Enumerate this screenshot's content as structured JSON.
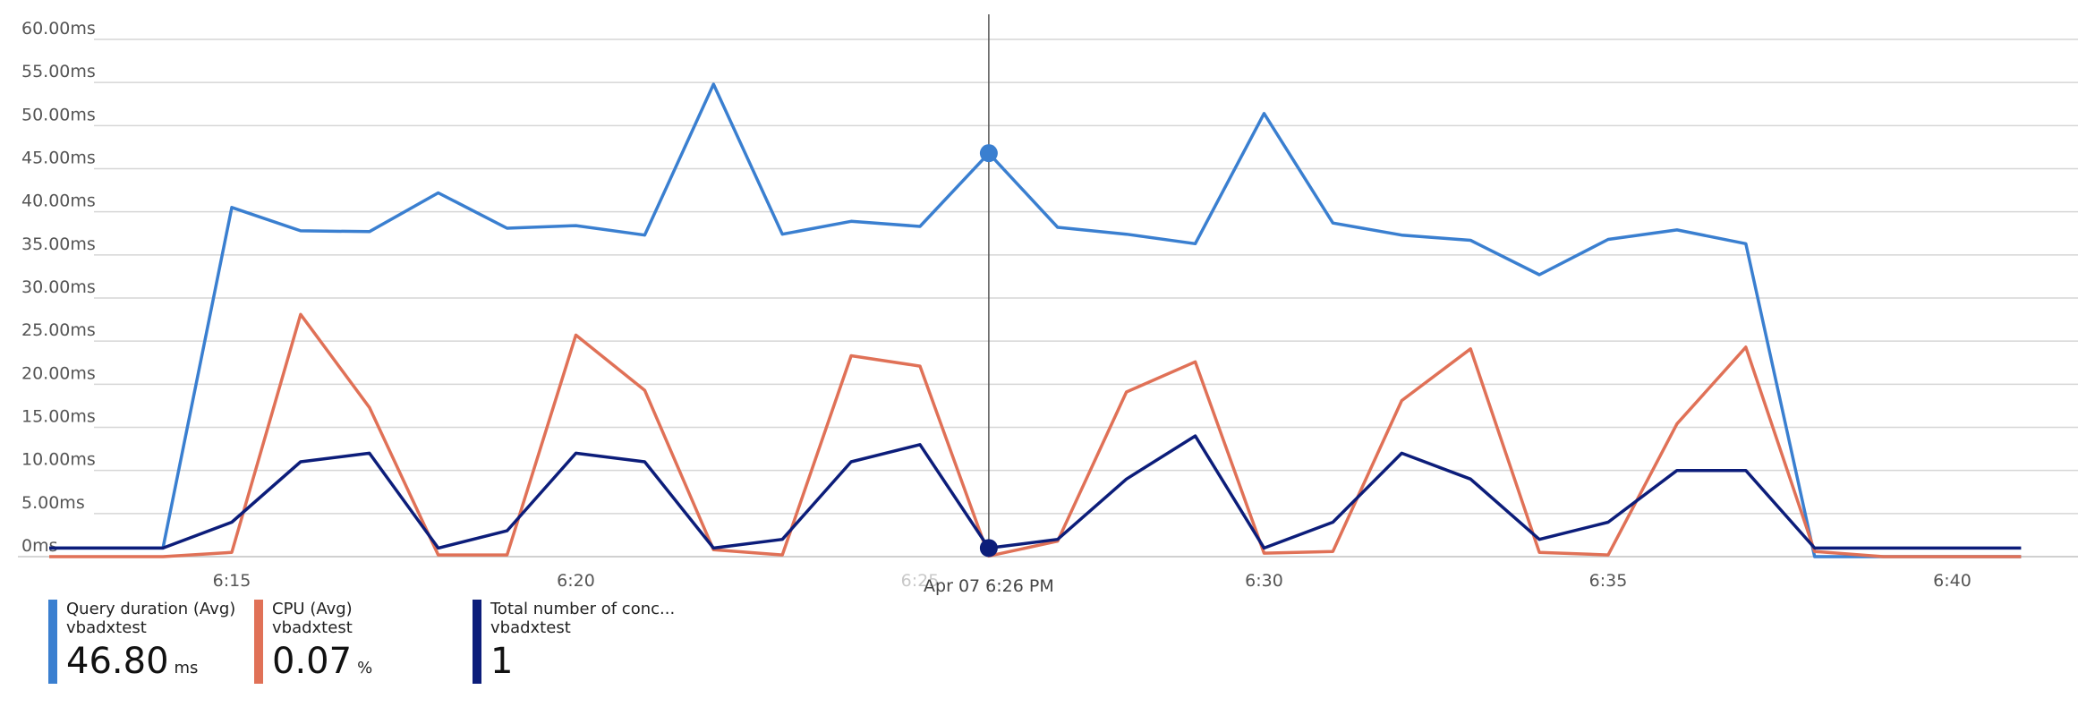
{
  "chart_data": {
    "type": "line",
    "x_tick_labels": [
      "6:15",
      "6:20",
      "6:25",
      "6:30",
      "6:35",
      "6:40"
    ],
    "y_tick_labels": [
      "0ms",
      "5.00ms",
      "10.00ms",
      "15.00ms",
      "20.00ms",
      "25.00ms",
      "30.00ms",
      "35.00ms",
      "40.00ms",
      "45.00ms",
      "50.00ms",
      "55.00ms",
      "60.00ms"
    ],
    "ylim": [
      0,
      60
    ],
    "x_minutes": [
      13.0,
      14.0,
      15.0,
      16.0,
      17.0,
      18.0,
      19.0,
      20.0,
      21.0,
      22.0,
      23.0,
      24.0,
      25.0,
      26.0,
      27.0,
      28.0,
      29.0,
      30.0,
      31.0,
      32.0,
      33.0,
      34.0,
      35.0,
      36.0,
      37.0,
      38.0,
      39.0,
      40.0,
      41.0
    ],
    "series": [
      {
        "name": "Query duration (Avg)",
        "color": "#3a7fd0",
        "values": [
          1.0,
          1.0,
          40.5,
          37.8,
          37.7,
          42.2,
          38.1,
          38.4,
          37.3,
          54.8,
          37.4,
          38.9,
          38.3,
          46.8,
          38.2,
          37.4,
          36.3,
          51.4,
          38.7,
          37.3,
          36.7,
          32.7,
          36.8,
          37.9,
          36.3,
          0.0,
          0.0,
          0.0,
          0.0
        ]
      },
      {
        "name": "CPU (Avg)",
        "color": "#e07157",
        "values": [
          0.0,
          0.0,
          0.5,
          28.1,
          17.3,
          0.2,
          0.2,
          25.7,
          19.3,
          0.8,
          0.2,
          23.3,
          22.1,
          0.07,
          1.8,
          19.1,
          22.6,
          0.4,
          0.6,
          18.1,
          24.1,
          0.5,
          0.2,
          15.4,
          24.3,
          0.6,
          0.0,
          0.0,
          0.0
        ]
      },
      {
        "name": "Total number of conc...",
        "color": "#0c1d7a",
        "values": [
          1.0,
          1.0,
          4.0,
          11.0,
          12.0,
          1.0,
          3.0,
          12.0,
          11.0,
          1.0,
          2.0,
          11.0,
          13.0,
          1.0,
          2.0,
          9.0,
          14.0,
          1.0,
          4.0,
          12.0,
          9.0,
          2.0,
          4.0,
          10.0,
          10.0,
          1.0,
          1.0,
          1.0,
          1.0
        ]
      }
    ],
    "cursor": {
      "label": "Apr 07 6:26 PM",
      "x_minute": 26.0
    },
    "grid": true
  },
  "legend": [
    {
      "name": "Query duration (Avg)",
      "source": "vbadxtest",
      "value": "46.80",
      "unit": "ms",
      "color": "#3a7fd0"
    },
    {
      "name": "CPU (Avg)",
      "source": "vbadxtest",
      "value": "0.07",
      "unit": "%",
      "color": "#e07157"
    },
    {
      "name": "Total number of conc...",
      "source": "vbadxtest",
      "value": "1",
      "unit": "",
      "color": "#0c1d7a"
    }
  ]
}
